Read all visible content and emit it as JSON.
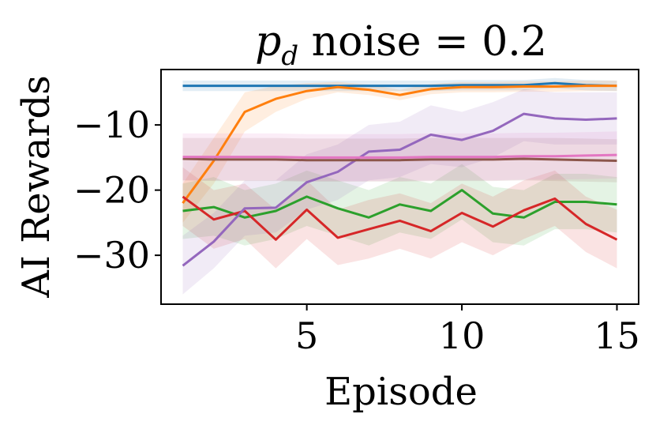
{
  "chart_data": {
    "type": "line",
    "title": {
      "var": "p",
      "sub": "d",
      "rest": " noise = 0.2"
    },
    "xlabel": "Episode",
    "ylabel": "AI Rewards",
    "xlim": [
      0.3,
      15.7
    ],
    "ylim": [
      -37.5,
      -1.5
    ],
    "xticks": [
      5,
      10,
      15
    ],
    "xtick_labels": [
      "5",
      "10",
      "15"
    ],
    "yticks": [
      -10,
      -20,
      -30
    ],
    "ytick_labels": [
      "−10",
      "−20",
      "−30"
    ],
    "grid": false,
    "legend": false,
    "x": [
      1,
      2,
      3,
      4,
      5,
      6,
      7,
      8,
      9,
      10,
      11,
      12,
      13,
      14,
      15
    ],
    "series": [
      {
        "color": "#1f77b4",
        "values": [
          -4.0,
          -4.0,
          -4.0,
          -4.0,
          -4.0,
          -4.0,
          -4.0,
          -4.0,
          -4.0,
          -3.9,
          -3.9,
          -3.9,
          -3.6,
          -3.9,
          -4.0
        ],
        "lower": [
          -4.8,
          -4.8,
          -4.8,
          -4.8,
          -4.8,
          -4.8,
          -4.8,
          -4.8,
          -4.8,
          -4.7,
          -4.7,
          -4.7,
          -4.4,
          -4.7,
          -4.8
        ],
        "upper": [
          -3.2,
          -3.2,
          -3.2,
          -3.2,
          -3.2,
          -3.2,
          -3.2,
          -3.2,
          -3.2,
          -3.1,
          -3.1,
          -3.1,
          -2.8,
          -3.1,
          -3.2
        ]
      },
      {
        "color": "#ff7f0e",
        "values": [
          -22.0,
          -15.5,
          -8.0,
          -6.0,
          -4.8,
          -4.2,
          -4.6,
          -5.4,
          -4.5,
          -4.2,
          -4.2,
          -4.1,
          -4.1,
          -4.0,
          -4.0
        ],
        "lower": [
          -25.0,
          -19.0,
          -11.0,
          -8.0,
          -6.0,
          -5.0,
          -5.4,
          -6.2,
          -5.3,
          -5.0,
          -5.0,
          -4.9,
          -4.9,
          -4.8,
          -4.8
        ],
        "upper": [
          -19.0,
          -12.0,
          -5.0,
          -4.0,
          -3.6,
          -3.4,
          -3.8,
          -4.6,
          -3.7,
          -3.4,
          -3.4,
          -3.3,
          -3.3,
          -3.2,
          -3.2
        ]
      },
      {
        "color": "#2ca02c",
        "values": [
          -23.2,
          -22.6,
          -24.2,
          -23.2,
          -21.0,
          -22.8,
          -24.2,
          -22.2,
          -23.2,
          -20.0,
          -23.6,
          -24.2,
          -21.8,
          -21.8,
          -22.2
        ],
        "lower": [
          -27.5,
          -27.0,
          -28.5,
          -27.5,
          -25.5,
          -27.0,
          -28.5,
          -26.5,
          -27.5,
          -24.5,
          -28.0,
          -28.5,
          -26.0,
          -26.0,
          -26.5
        ],
        "upper": [
          -19.0,
          -18.0,
          -20.0,
          -19.0,
          -17.0,
          -18.5,
          -20.0,
          -18.0,
          -19.0,
          -16.0,
          -19.5,
          -20.0,
          -17.5,
          -17.5,
          -18.0
        ]
      },
      {
        "color": "#d62728",
        "values": [
          -21.0,
          -24.5,
          -23.2,
          -27.6,
          -23.0,
          -27.3,
          -26.0,
          -24.7,
          -26.3,
          -23.5,
          -25.6,
          -23.1,
          -21.3,
          -25.2,
          -27.6
        ],
        "lower": [
          -25.5,
          -29.0,
          -27.5,
          -32.0,
          -27.5,
          -31.5,
          -30.5,
          -29.0,
          -30.5,
          -28.0,
          -30.0,
          -27.5,
          -25.5,
          -29.5,
          -32.0
        ],
        "upper": [
          -16.5,
          -20.0,
          -19.0,
          -23.0,
          -18.5,
          -23.0,
          -21.5,
          -20.5,
          -22.0,
          -19.0,
          -21.0,
          -18.5,
          -17.0,
          -21.0,
          -23.0
        ]
      },
      {
        "color": "#9467bd",
        "values": [
          -31.6,
          -27.9,
          -22.8,
          -22.7,
          -18.8,
          -17.2,
          -14.1,
          -13.8,
          -11.5,
          -12.3,
          -10.9,
          -8.3,
          -9.0,
          -9.2,
          -9.0
        ],
        "lower": [
          -36.0,
          -32.0,
          -27.0,
          -26.5,
          -23.0,
          -21.5,
          -18.5,
          -18.0,
          -16.0,
          -16.5,
          -15.0,
          -12.5,
          -13.0,
          -13.0,
          -13.0
        ],
        "upper": [
          -27.0,
          -23.5,
          -18.5,
          -18.5,
          -14.5,
          -13.0,
          -10.0,
          -9.5,
          -7.0,
          -8.0,
          -6.5,
          -4.5,
          -5.0,
          -5.0,
          -5.0
        ]
      },
      {
        "color": "#8c564b",
        "values": [
          -15.2,
          -15.3,
          -15.3,
          -15.3,
          -15.4,
          -15.4,
          -15.4,
          -15.4,
          -15.3,
          -15.3,
          -15.3,
          -15.2,
          -15.3,
          -15.4,
          -15.5
        ],
        "lower": [
          -18.5,
          -18.6,
          -18.6,
          -18.6,
          -18.7,
          -18.7,
          -18.7,
          -18.7,
          -18.6,
          -18.6,
          -18.6,
          -18.5,
          -18.6,
          -18.7,
          -18.8
        ],
        "upper": [
          -12.0,
          -12.0,
          -12.0,
          -12.0,
          -12.1,
          -12.1,
          -12.1,
          -12.1,
          -12.0,
          -12.0,
          -12.0,
          -12.0,
          -12.0,
          -12.1,
          -12.2
        ]
      },
      {
        "color": "#e377c2",
        "values": [
          -14.9,
          -14.9,
          -14.9,
          -14.9,
          -15.0,
          -15.0,
          -15.0,
          -15.0,
          -14.9,
          -14.9,
          -14.9,
          -14.8,
          -14.8,
          -14.7,
          -14.6
        ],
        "lower": [
          -18.5,
          -18.5,
          -18.5,
          -18.5,
          -18.6,
          -18.6,
          -18.6,
          -18.6,
          -18.5,
          -18.5,
          -18.5,
          -18.4,
          -18.4,
          -18.3,
          -18.2
        ],
        "upper": [
          -11.3,
          -11.3,
          -11.3,
          -11.3,
          -11.4,
          -11.4,
          -11.4,
          -11.4,
          -11.3,
          -11.3,
          -11.3,
          -11.2,
          -11.2,
          -11.1,
          -11.0
        ]
      }
    ]
  }
}
